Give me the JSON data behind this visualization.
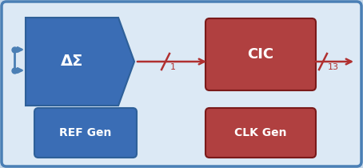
{
  "bg_outer": "#c5d8ea",
  "bg_inner": "#dce9f5",
  "blue_dark": "#2E6099",
  "blue_mid": "#4a7fb5",
  "blue_box": "#3a6db5",
  "red_box": "#b04040",
  "red_arrow": "#b03030",
  "white_text": "#FFFFFF",
  "ds_label": "ΔΣ",
  "cic_label": "CIC",
  "ref_label": "REF Gen",
  "clk_label": "CLK Gen",
  "label_1": "1",
  "label_13": "13",
  "figsize": [
    4.54,
    2.1
  ],
  "dpi": 100
}
